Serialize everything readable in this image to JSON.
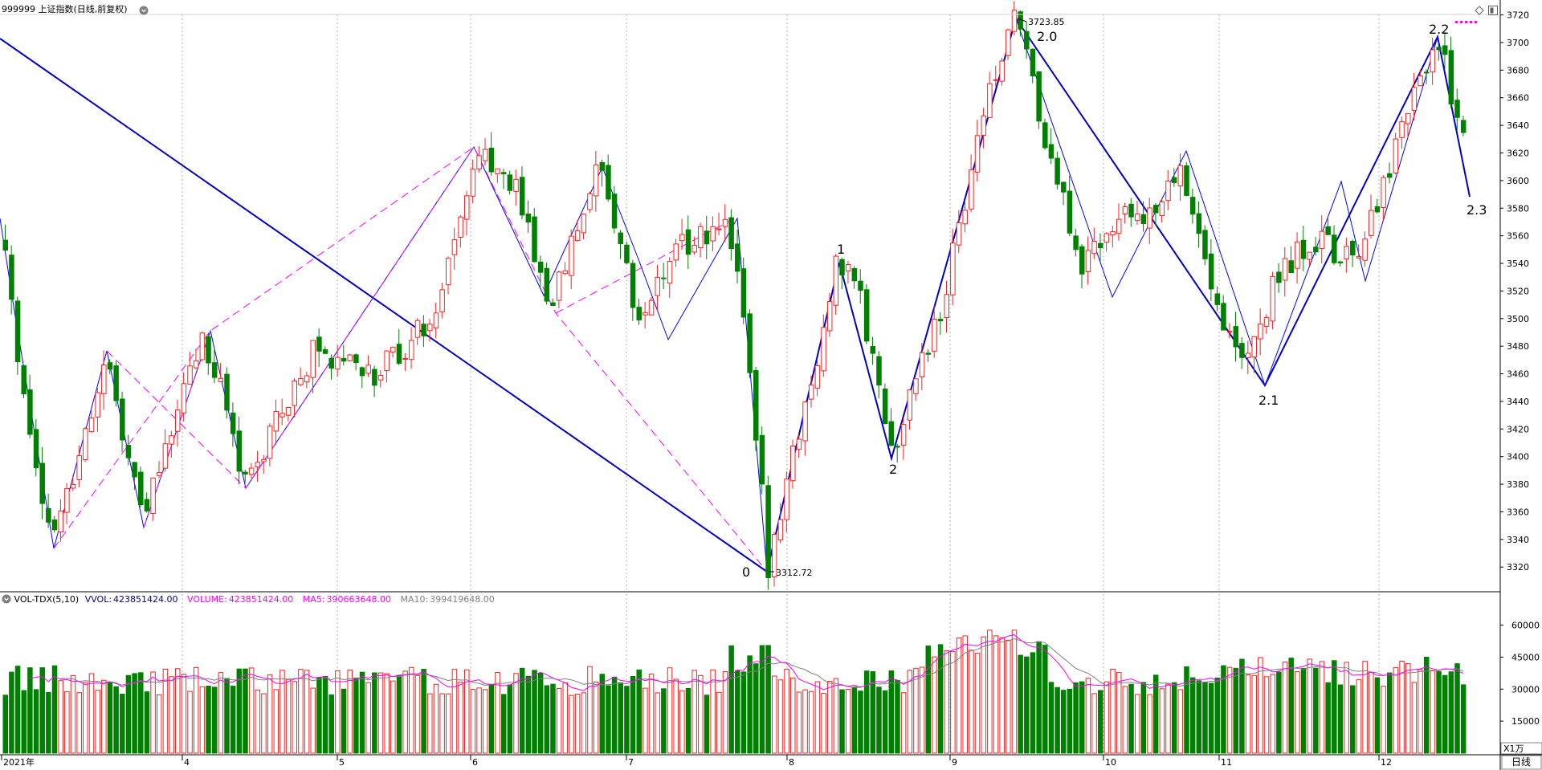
{
  "header": {
    "title": "999999 上证指数(日线,前复权)",
    "menu_icon": "circle-chevron-down-icon"
  },
  "top_right_icons": [
    "diamond-icon",
    "window-restore-icon"
  ],
  "legend_dots_color": "#ff00ff",
  "colors": {
    "up": "#ff2020",
    "down": "#008000",
    "wave_main": "#0000c8",
    "wave_sub": "#0000ff",
    "wave_alt": "#ff00ff",
    "grid": "#b0b0b0",
    "ma5": "#ff00ff",
    "ma10": "#808080"
  },
  "price_axis": {
    "ticks": [
      "3720",
      "3700",
      "3680",
      "3660",
      "3640",
      "3620",
      "3600",
      "3580",
      "3560",
      "3540",
      "3520",
      "3500",
      "3480",
      "3460",
      "3440",
      "3420",
      "3400",
      "3380",
      "3360",
      "3340",
      "3320"
    ]
  },
  "wave_labels": {
    "w0": "0",
    "w1": "1",
    "w2": "2",
    "w20": "2.0",
    "w21": "2.1",
    "w22": "2.2",
    "w23": "2.3"
  },
  "price_labels": {
    "high": "3723.85",
    "low": "3312.72"
  },
  "volume_panel": {
    "indicator": "VOL-TDX(5,10)",
    "vvol_label": "VVOL:",
    "vvol_value": "423851424.00",
    "volume_label": "VOLUME:",
    "volume_value": "423851424.00",
    "ma5_label": "MA5:",
    "ma5_value": "390663648.00",
    "ma10_label": "MA10:",
    "ma10_value": "399419648.00",
    "ticks": [
      "60000",
      "45000",
      "30000",
      "15000"
    ],
    "unit": "X1万"
  },
  "time_axis": {
    "months": [
      "2021年",
      "4",
      "5",
      "6",
      "7",
      "8",
      "9",
      "10",
      "11",
      "12"
    ]
  },
  "period_tab": "日线",
  "chart_data": {
    "type": "candlestick",
    "title": "999999 上证指数(日线,前复权)",
    "ylim": [
      3305,
      3725
    ],
    "volume_ylim": [
      0,
      70000
    ],
    "volume_unit": "X1万",
    "extremes": {
      "high": 3723.85,
      "low": 3312.72
    },
    "wave_points": [
      {
        "label": "0",
        "value": 3312.72
      },
      {
        "label": "1",
        "value": 3541
      },
      {
        "label": "2",
        "value": 3396
      },
      {
        "label": "2.0",
        "value": 3723.85
      },
      {
        "label": "2.1",
        "value": 3450
      },
      {
        "label": "2.2",
        "value": 3708
      },
      {
        "label": "2.3",
        "value": 3590
      }
    ]
  }
}
